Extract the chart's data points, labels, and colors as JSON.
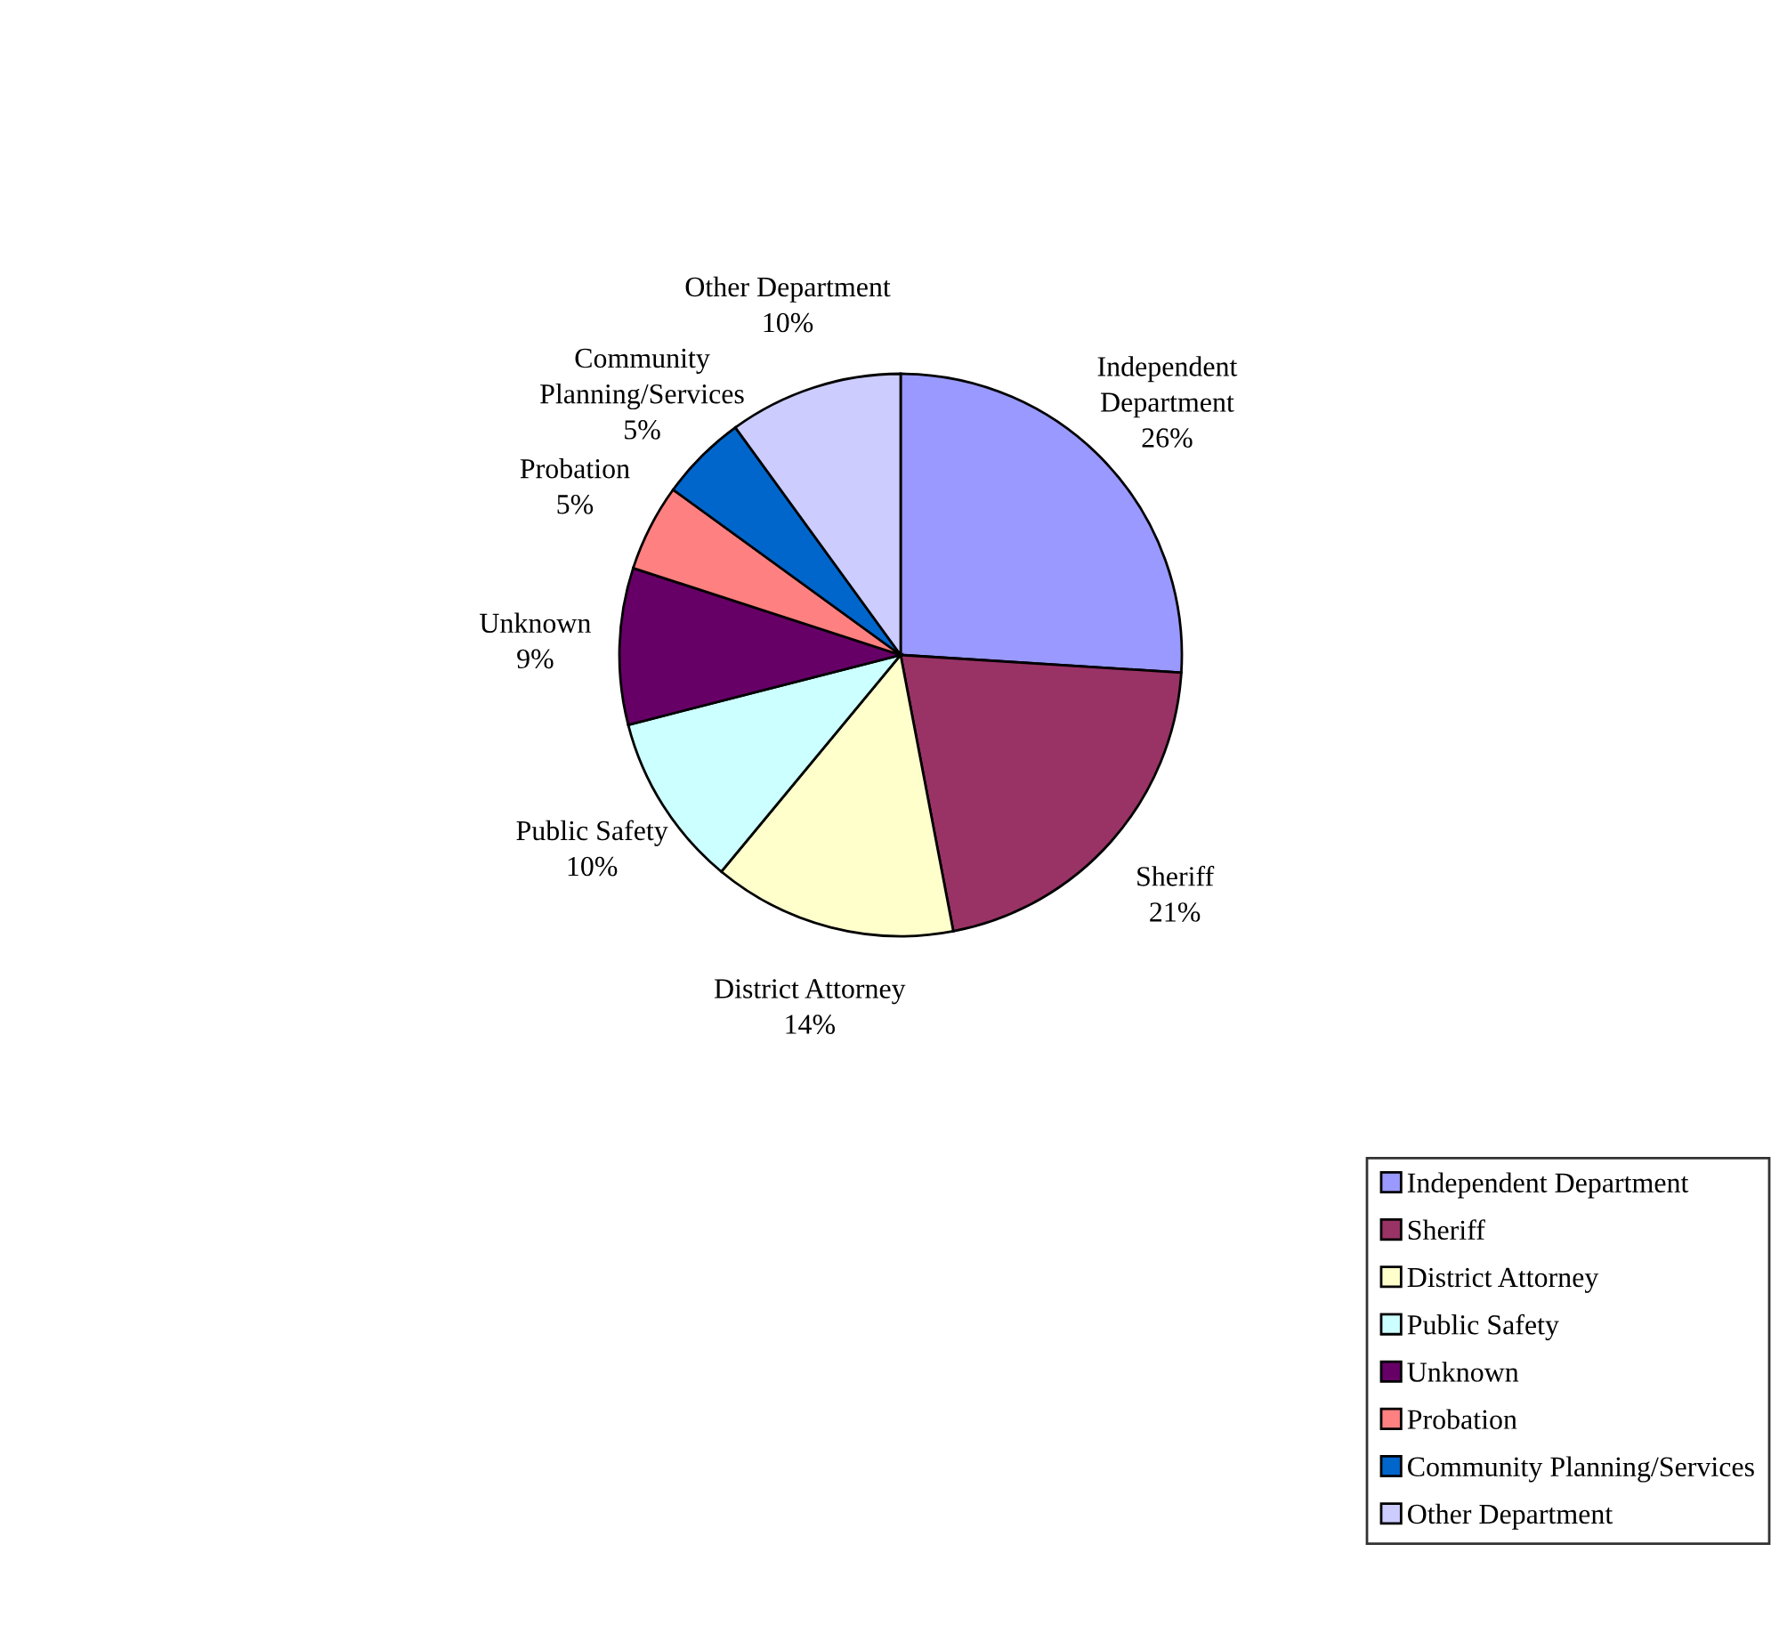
{
  "chart_data": {
    "type": "pie",
    "categories": [
      "Independent Department",
      "Sheriff",
      "District Attorney",
      "Public Safety",
      "Unknown",
      "Probation",
      "Community Planning/Services",
      "Other Department"
    ],
    "values": [
      26,
      21,
      14,
      10,
      9,
      5,
      5,
      10
    ],
    "value_labels": [
      "26%",
      "21%",
      "14%",
      "10%",
      "9%",
      "5%",
      "5%",
      "10%"
    ],
    "colors": [
      "#9999ff",
      "#993366",
      "#ffffcc",
      "#ccffff",
      "#660066",
      "#ff8080",
      "#0066cc",
      "#ccccff"
    ],
    "legend": "bottom right"
  }
}
